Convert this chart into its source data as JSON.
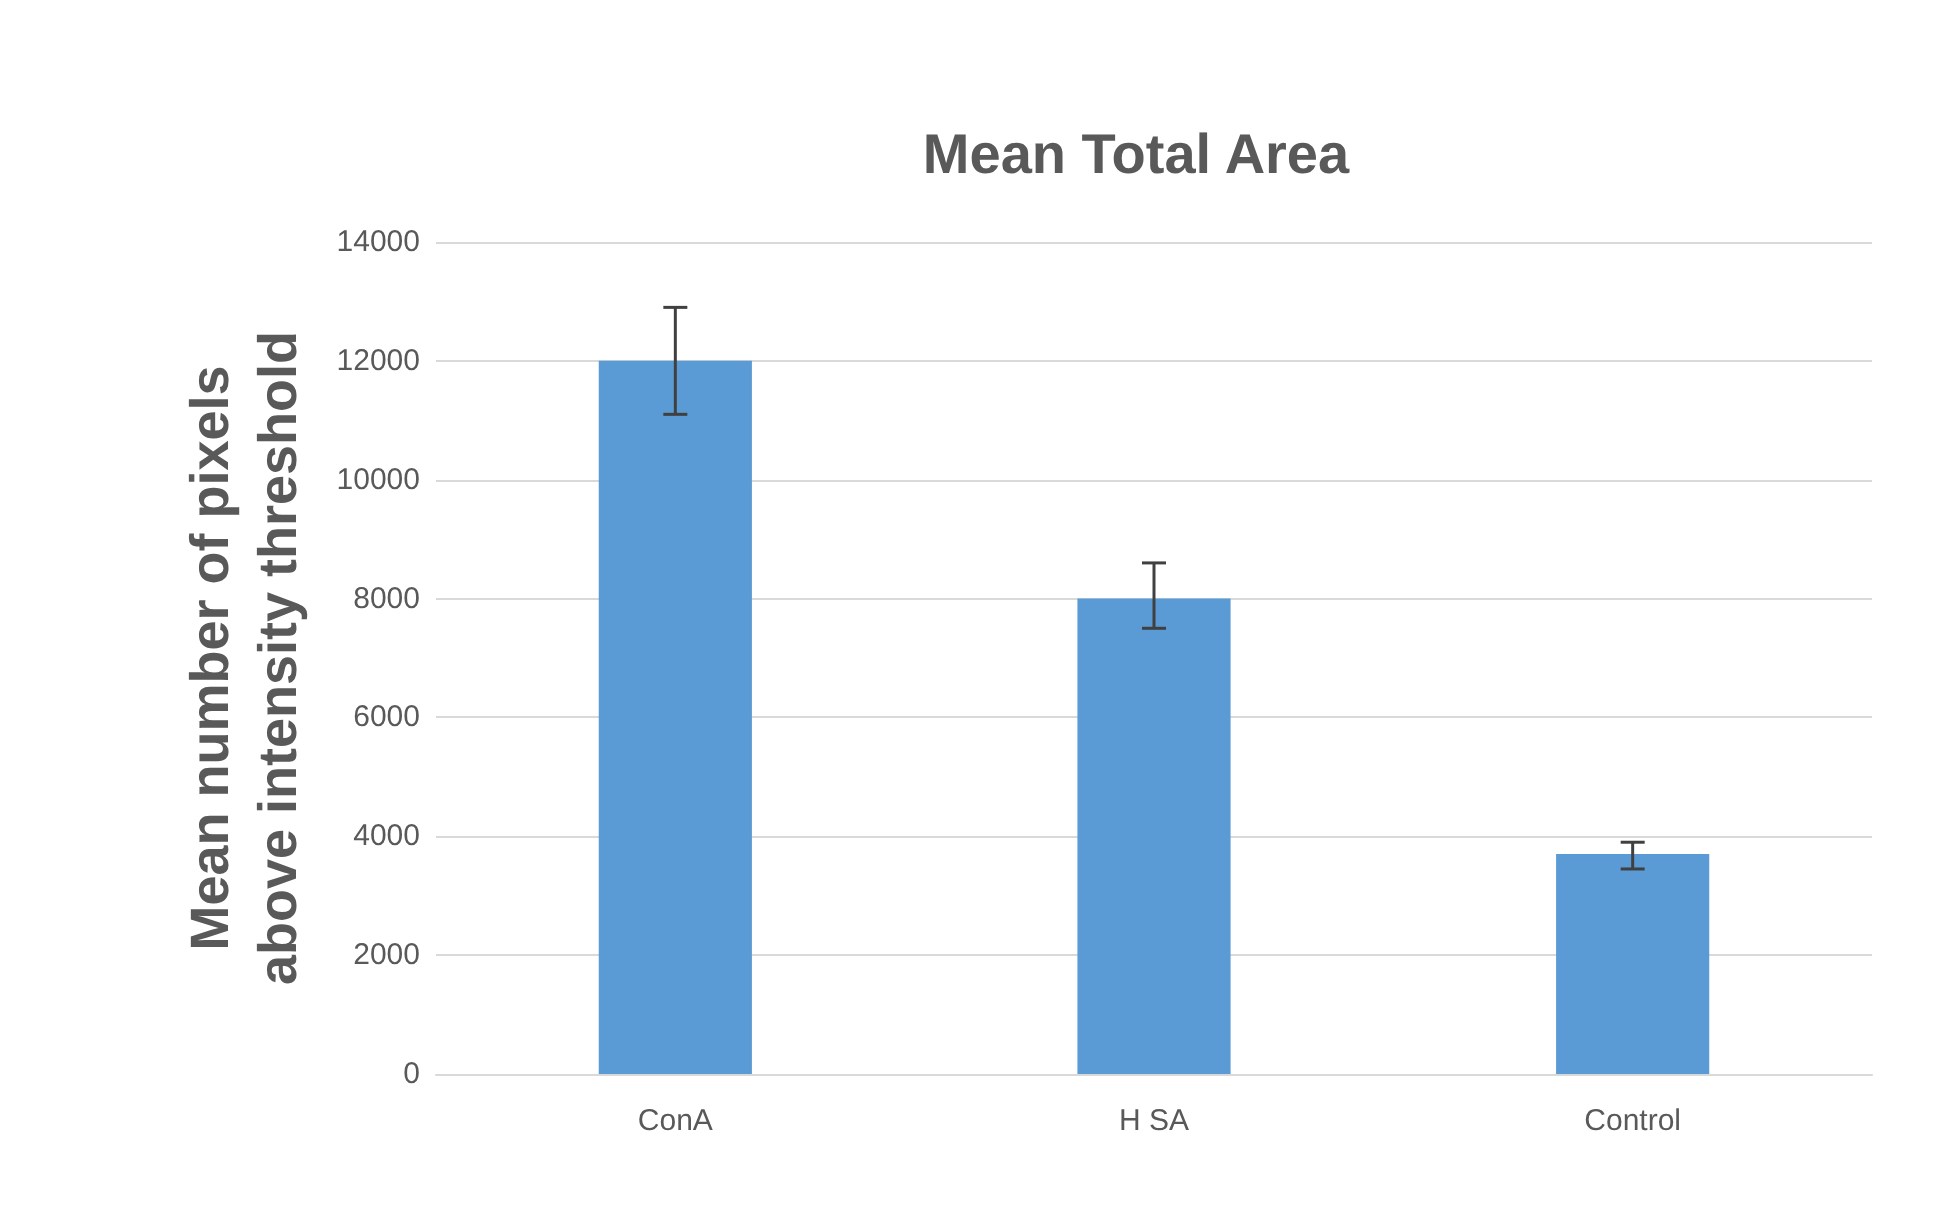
{
  "chart_data": {
    "type": "bar",
    "title": "Mean Total Area",
    "ylabel": "Mean number of pixels\nabove intensity threshold",
    "categories": [
      "ConA",
      "H SA",
      "Control"
    ],
    "values": [
      12000,
      8000,
      3700
    ],
    "errors": [
      [
        11100,
        12900
      ],
      [
        7500,
        8600
      ],
      [
        3450,
        3900
      ]
    ],
    "color": "#5b9bd5",
    "ylim": [
      0,
      14000
    ],
    "yticks": [
      0,
      2000,
      4000,
      6000,
      8000,
      10000,
      12000,
      14000
    ],
    "grid": "y"
  }
}
